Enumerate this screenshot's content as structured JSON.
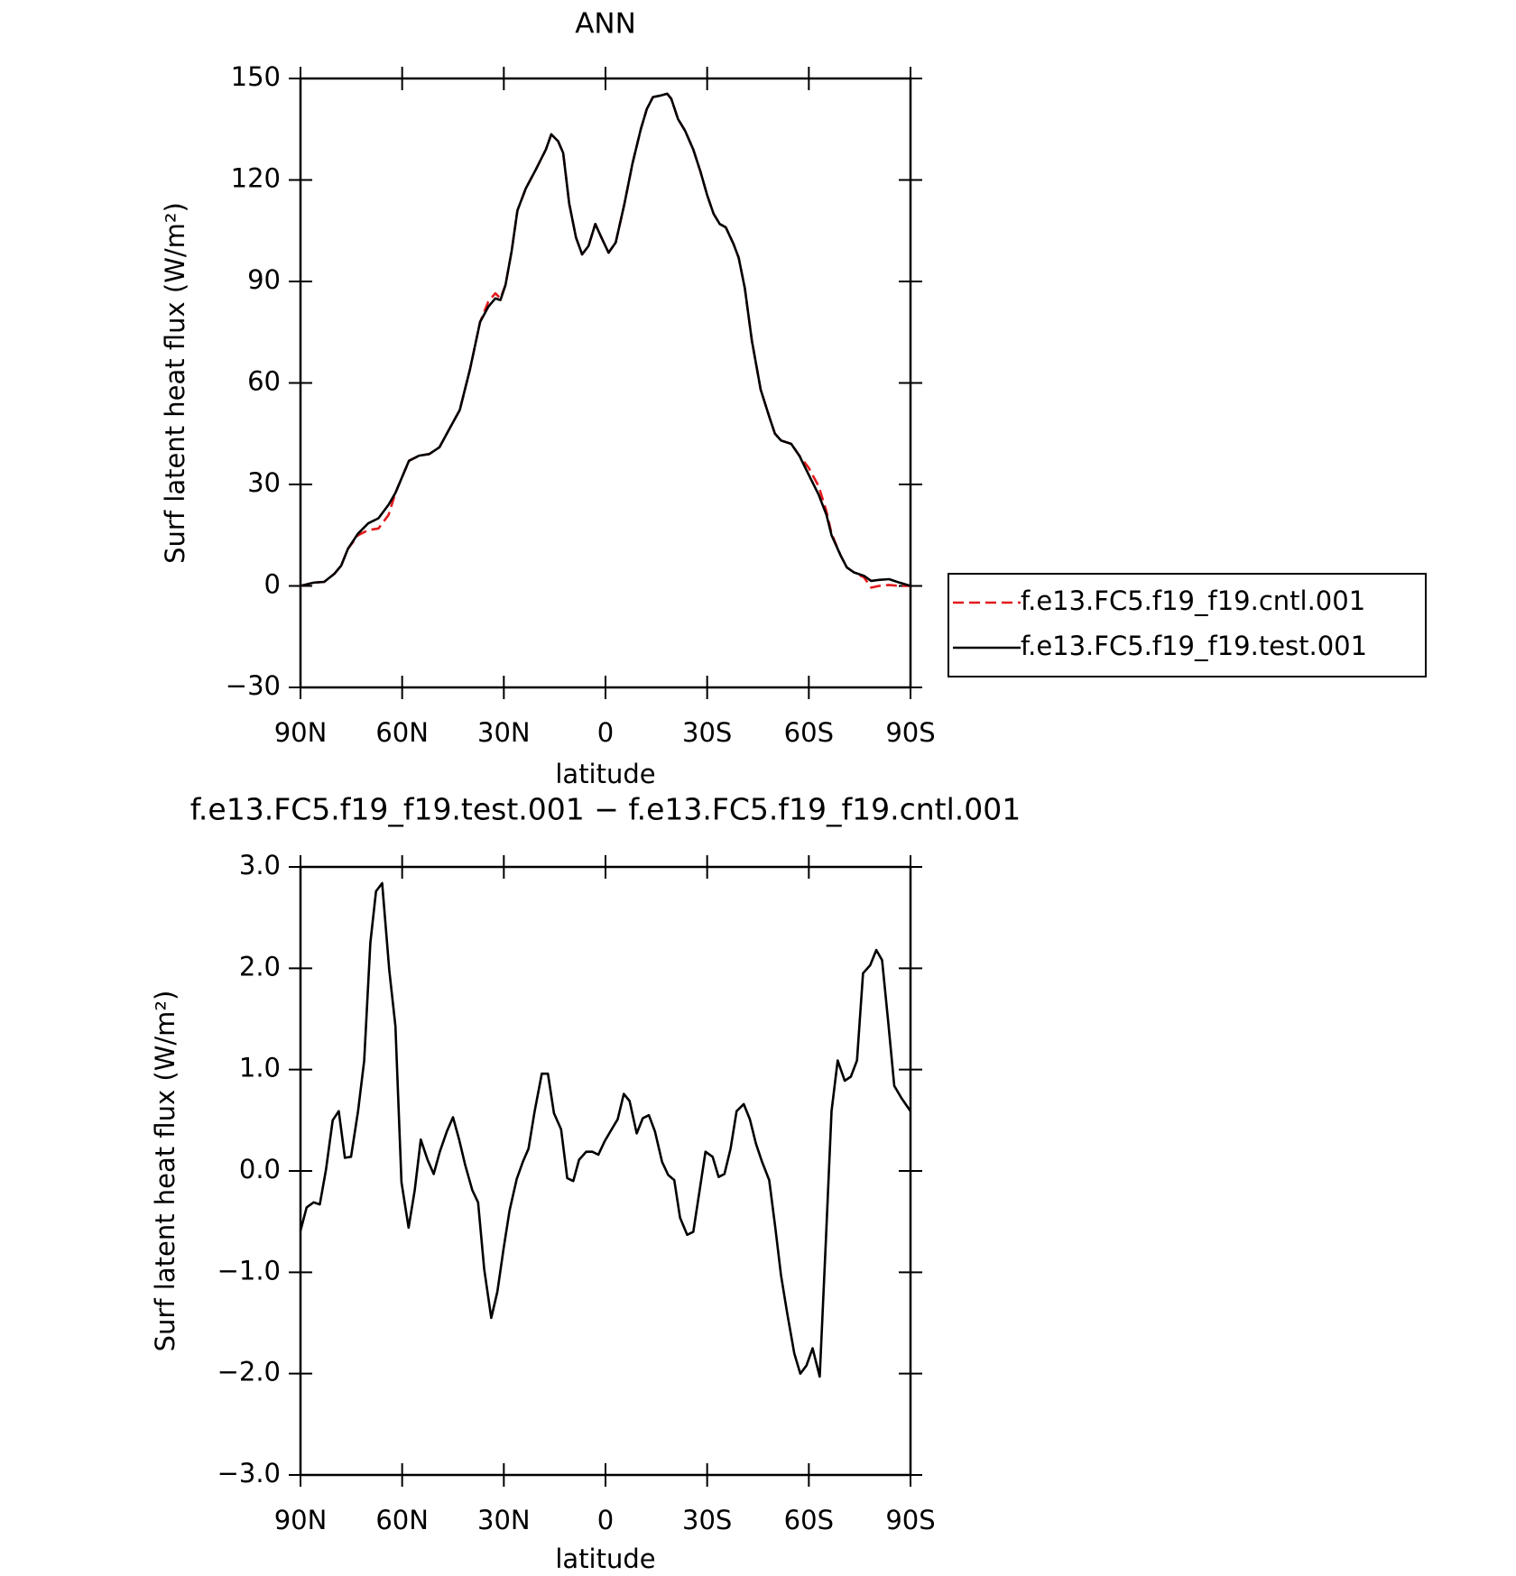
{
  "chart_data": [
    {
      "type": "line",
      "title": "ANN",
      "xlabel": "latitude",
      "ylabel": "Surf latent heat flux (W/m²)",
      "x": [
        90,
        86,
        83,
        80,
        78,
        76,
        73,
        70,
        67,
        64,
        62,
        58,
        55,
        52,
        49,
        46,
        43,
        40,
        37,
        34.6,
        32.5,
        31,
        29.5,
        27.7,
        26,
        23.5,
        20.6,
        17.6,
        16,
        14,
        12.5,
        10.7,
        8.7,
        6.9,
        5,
        3,
        1.2,
        -0.9,
        -3,
        -5.6,
        -8,
        -10.4,
        -12.2,
        -14,
        -16.4,
        -18.2,
        -19.4,
        -21.4,
        -23.5,
        -25.9,
        -28,
        -30,
        -31.9,
        -33.7,
        -35.5,
        -37.8,
        -39.3,
        -41.1,
        -43.2,
        -45.8,
        -48.5,
        -50,
        -51.8,
        -54.8,
        -57.2,
        -59.9,
        -62.9,
        -65.2,
        -66.7,
        -69.4,
        -71.2,
        -73.3,
        -76.3,
        -78.4,
        -80.7,
        -83.7,
        -86.7,
        -90
      ],
      "series": [
        {
          "name": "f.e13.FC5.f19_f19.cntl.001",
          "color": "#e41a1c",
          "line_style": "dashed",
          "values": [
            0,
            1,
            1.2,
            3.6,
            6,
            11,
            15,
            16.5,
            17,
            21,
            27.5,
            37,
            38.5,
            39,
            41,
            46.5,
            52,
            64,
            78,
            84,
            86.5,
            85,
            89,
            99,
            111,
            117.5,
            123,
            129,
            133.5,
            131.5,
            128,
            113,
            103,
            98,
            100.5,
            107,
            103,
            98.5,
            101.5,
            113,
            125,
            135,
            141,
            144.5,
            145,
            145.5,
            144,
            138,
            134.5,
            129,
            122.5,
            115.5,
            110,
            107,
            106,
            101,
            97,
            88,
            72.5,
            58,
            49.5,
            45,
            43,
            42,
            38.5,
            35,
            29.5,
            22,
            15.5,
            9,
            5.5,
            4,
            2.5,
            -0.5,
            0,
            0.3,
            0,
            0
          ]
        },
        {
          "name": "f.e13.FC5.f19_f19.test.001",
          "color": "#000000",
          "line_style": "solid",
          "values": [
            0,
            1,
            1.2,
            3.6,
            6,
            11,
            15.5,
            18.5,
            20,
            24,
            27.5,
            37,
            38.5,
            39,
            41,
            46.5,
            52,
            64,
            78,
            82.5,
            85,
            84.5,
            89,
            99,
            111,
            117.5,
            123,
            129,
            133.5,
            131.5,
            128,
            113,
            103,
            98,
            100.5,
            107,
            103,
            98.5,
            101.5,
            113,
            125,
            135,
            141,
            144.5,
            145,
            145.5,
            144,
            138,
            134.5,
            129,
            122.5,
            115.5,
            110,
            107,
            106,
            101,
            97,
            88,
            72.5,
            58,
            49.5,
            45,
            43,
            42,
            38.5,
            33,
            27,
            21,
            15,
            9,
            5.5,
            4,
            3,
            1.5,
            1.8,
            2,
            1,
            0
          ]
        }
      ],
      "xlim": [
        90,
        -90
      ],
      "xticks": [
        {
          "value": 90,
          "label": "90N"
        },
        {
          "value": 60,
          "label": "60N"
        },
        {
          "value": 30,
          "label": "30N"
        },
        0,
        {
          "value": -30,
          "label": "30S"
        },
        {
          "value": -60,
          "label": "60S"
        },
        {
          "value": -90,
          "label": "90S"
        }
      ],
      "ylim": [
        -30,
        150
      ],
      "yticks": [
        {
          "value": -30,
          "label": "−30"
        },
        0,
        30,
        60,
        90,
        120,
        150
      ],
      "legend": "right"
    },
    {
      "type": "line",
      "title": "f.e13.FC5.f19_f19.test.001 − f.e13.FC5.f19_f19.cntl.001",
      "xlabel": "latitude",
      "ylabel": "Surf latent heat flux (W/m²)",
      "x": [
        90,
        88.2,
        86.1,
        84.3,
        82.5,
        80.5,
        78.7,
        76.9,
        75.1,
        73.0,
        71.2,
        69.4,
        67.7,
        65.9,
        63.8,
        62.0,
        60.2,
        58.1,
        56.3,
        54.5,
        52.5,
        50.7,
        48.9,
        46.8,
        45.0,
        43.2,
        41.4,
        39.3,
        37.6,
        35.8,
        33.7,
        31.9,
        30.1,
        28.3,
        26.2,
        24.4,
        22.7,
        20.9,
        18.8,
        17.0,
        15.2,
        13.1,
        11.3,
        9.5,
        7.8,
        5.7,
        3.9,
        2.1,
        0.3,
        -1.8,
        -3.6,
        -5.4,
        -7.1,
        -9.2,
        -11.0,
        -12.8,
        -14.6,
        -16.7,
        -18.5,
        -20.3,
        -22.0,
        -24.1,
        -25.9,
        -27.7,
        -29.5,
        -31.6,
        -33.4,
        -35.1,
        -36.9,
        -38.7,
        -40.8,
        -42.6,
        -44.4,
        -46.2,
        -48.3,
        -50.1,
        -51.8,
        -53.6,
        -55.7,
        -57.5,
        -59.3,
        -61.1,
        -63.2,
        -65.0,
        -66.7,
        -68.5,
        -70.6,
        -72.4,
        -74.2,
        -76.0,
        -78.1,
        -79.9,
        -81.6,
        -83.4,
        -85.2,
        -87.3,
        -90
      ],
      "series": [
        {
          "name": null,
          "color": "#000000",
          "line_style": "solid",
          "values": [
            -0.59,
            -0.36,
            -0.31,
            -0.33,
            0.01,
            0.5,
            0.59,
            0.13,
            0.14,
            0.59,
            1.09,
            2.25,
            2.76,
            2.84,
            1.98,
            1.43,
            -0.11,
            -0.56,
            -0.19,
            0.31,
            0.11,
            -0.03,
            0.19,
            0.39,
            0.53,
            0.31,
            0.06,
            -0.19,
            -0.31,
            -0.97,
            -1.45,
            -1.19,
            -0.77,
            -0.39,
            -0.08,
            0.09,
            0.22,
            0.59,
            0.96,
            0.96,
            0.57,
            0.41,
            -0.07,
            -0.1,
            0.11,
            0.19,
            0.19,
            0.16,
            0.29,
            0.41,
            0.51,
            0.76,
            0.69,
            0.37,
            0.52,
            0.55,
            0.39,
            0.09,
            -0.04,
            -0.09,
            -0.46,
            -0.63,
            -0.6,
            -0.21,
            0.19,
            0.14,
            -0.06,
            -0.03,
            0.22,
            0.59,
            0.66,
            0.51,
            0.27,
            0.09,
            -0.09,
            -0.56,
            -1.03,
            -1.4,
            -1.8,
            -2.0,
            -1.92,
            -1.75,
            -2.03,
            -0.71,
            0.59,
            1.09,
            0.89,
            0.93,
            1.09,
            1.95,
            2.03,
            2.18,
            2.08,
            1.48,
            0.84,
            0.72,
            0.59
          ]
        }
      ],
      "xlim": [
        90,
        -90
      ],
      "xticks": [
        {
          "value": 90,
          "label": "90N"
        },
        {
          "value": 60,
          "label": "60N"
        },
        {
          "value": 30,
          "label": "30N"
        },
        0,
        {
          "value": -30,
          "label": "30S"
        },
        {
          "value": -60,
          "label": "60S"
        },
        {
          "value": -90,
          "label": "90S"
        }
      ],
      "ylim": [
        -3,
        3
      ],
      "yticks": [
        {
          "value": -3,
          "label": "−3.0"
        },
        {
          "value": -2,
          "label": "−2.0"
        },
        {
          "value": -1,
          "label": "−1.0"
        },
        {
          "value": 0,
          "label": "0.0"
        },
        {
          "value": 1,
          "label": "1.0"
        },
        {
          "value": 2,
          "label": "2.0"
        },
        {
          "value": 3,
          "label": "3.0"
        }
      ]
    }
  ]
}
